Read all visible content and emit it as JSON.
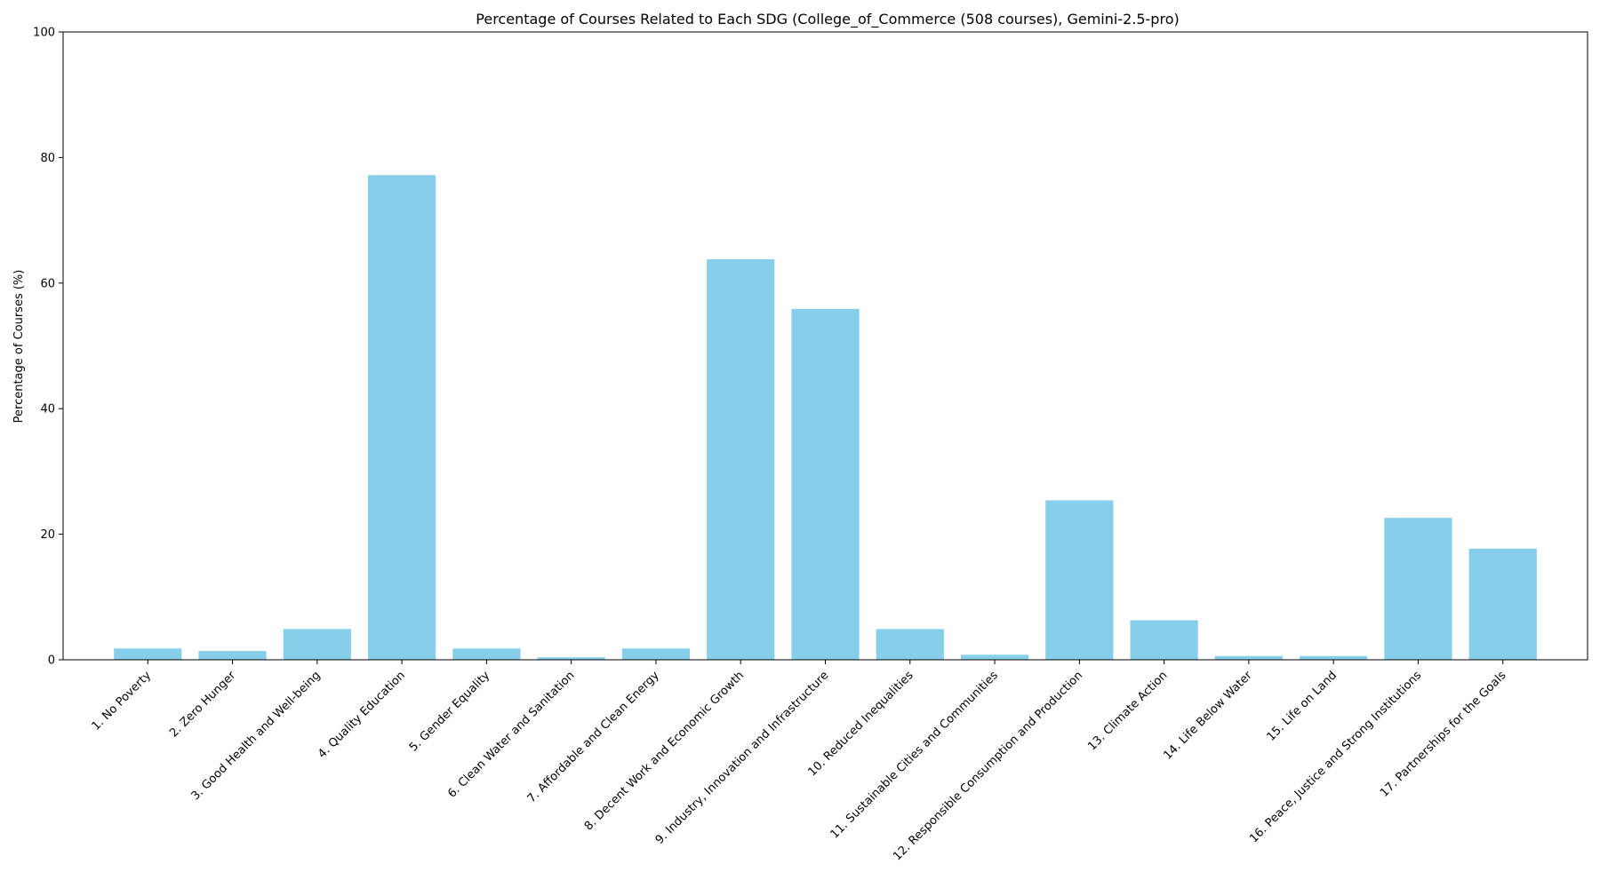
{
  "chart_data": {
    "type": "bar",
    "title": "Percentage of Courses Related to Each SDG (College_of_Commerce (508 courses), Gemini-2.5-pro)",
    "xlabel": "",
    "ylabel": "Percentage of Courses (%)",
    "ylim": [
      0,
      100
    ],
    "yticks": [
      0,
      20,
      40,
      60,
      80,
      100
    ],
    "grid": false,
    "legend": "none",
    "bar_color": "#87CEEB",
    "categories": [
      "1. No Poverty",
      "2. Zero Hunger",
      "3. Good Health and Well-being",
      "4. Quality Education",
      "5. Gender Equality",
      "6. Clean Water and Sanitation",
      "7. Affordable and Clean Energy",
      "8. Decent Work and Economic Growth",
      "9. Industry, Innovation and Infrastructure",
      "10. Reduced Inequalities",
      "11. Sustainable Cities and Communities",
      "12. Responsible Consumption and Production",
      "13. Climate Action",
      "14. Life Below Water",
      "15. Life on Land",
      "16. Peace, Justice and Strong Institutions",
      "17. Partnerships for the Goals"
    ],
    "values": [
      1.8,
      1.4,
      4.9,
      77.2,
      1.8,
      0.4,
      1.8,
      63.8,
      55.9,
      4.9,
      0.8,
      25.4,
      6.3,
      0.6,
      0.6,
      22.6,
      17.7
    ]
  }
}
